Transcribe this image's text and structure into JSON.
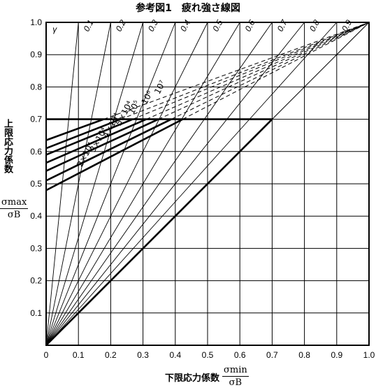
{
  "title": "参考図1　疲れ強さ線図",
  "chart_data": {
    "type": "line",
    "title": "参考図1　疲れ強さ線図",
    "xlabel": "下限応力係数",
    "xlabel_fraction": {
      "num": "σmin",
      "den": "σB"
    },
    "ylabel": "上限応力係数",
    "ylabel_fraction": {
      "num": "σmax",
      "den": "σB"
    },
    "xlim": [
      0,
      1.0
    ],
    "ylim": [
      0,
      1.0
    ],
    "xticks": [
      "0",
      "0.1",
      "0.2",
      "0.3",
      "0.4",
      "0.5",
      "0.6",
      "0.7",
      "0.8",
      "0.9",
      "1.0"
    ],
    "yticks": [
      "0.1",
      "0.2",
      "0.3",
      "0.4",
      "0.5",
      "0.6",
      "0.7",
      "0.8",
      "0.9",
      "1.0"
    ],
    "grid": true,
    "gamma_symbol": "γ",
    "gamma_lines": [
      {
        "label": "0.1",
        "slope": 0.1
      },
      {
        "label": "0.2",
        "slope": 0.2
      },
      {
        "label": "0.3",
        "slope": 0.3
      },
      {
        "label": "0.4",
        "slope": 0.4
      },
      {
        "label": "0.5",
        "slope": 0.5
      },
      {
        "label": "0.6",
        "slope": 0.6
      },
      {
        "label": "0.7",
        "slope": 0.7
      },
      {
        "label": "0.8",
        "slope": 0.8
      },
      {
        "label": "0.9",
        "slope": 0.9
      }
    ],
    "cycle_lines": [
      {
        "label": "2×10⁴",
        "y0": 0.48
      },
      {
        "label": "3×10⁴",
        "y0": 0.51
      },
      {
        "label": "4×10⁴",
        "y0": 0.54
      },
      {
        "label": "5×10⁴",
        "y0": 0.565
      },
      {
        "label": "10⁵",
        "y0": 0.59
      },
      {
        "label": "10⁶",
        "y0": 0.61
      },
      {
        "label": "10⁷",
        "y0": 0.635
      }
    ],
    "cap": {
      "y": 0.7,
      "x_end": 0.7
    },
    "diagonal": [
      [
        0,
        0
      ],
      [
        0.7,
        0.7
      ]
    ]
  }
}
